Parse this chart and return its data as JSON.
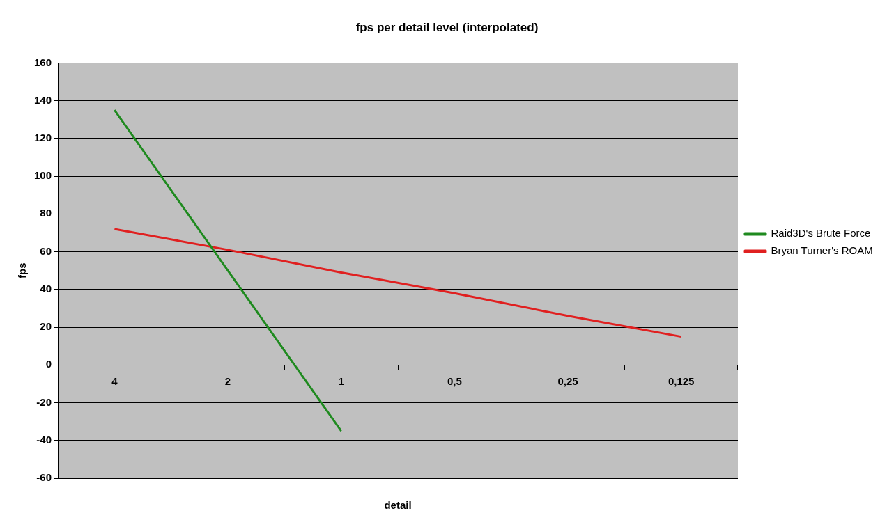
{
  "chart_data": {
    "type": "line",
    "title": "fps per detail level (interpolated)",
    "xlabel": "detail",
    "ylabel": "fps",
    "categories": [
      "4",
      "2",
      "1",
      "0,5",
      "0,25",
      "0,125"
    ],
    "series": [
      {
        "name": "Raid3D's Brute Force",
        "color": "#1f8a1f",
        "values": [
          135,
          50,
          -35,
          null,
          null,
          null
        ]
      },
      {
        "name": "Bryan Turner's ROAM",
        "color": "#e02020",
        "values": [
          72,
          61,
          49,
          38,
          26,
          15
        ]
      }
    ],
    "ylim": [
      -60,
      160
    ],
    "yticks": [
      -60,
      -40,
      -20,
      0,
      20,
      40,
      60,
      80,
      100,
      120,
      140,
      160
    ],
    "grid": "y",
    "legend": "right",
    "marker": "none",
    "line_style": "solid"
  }
}
